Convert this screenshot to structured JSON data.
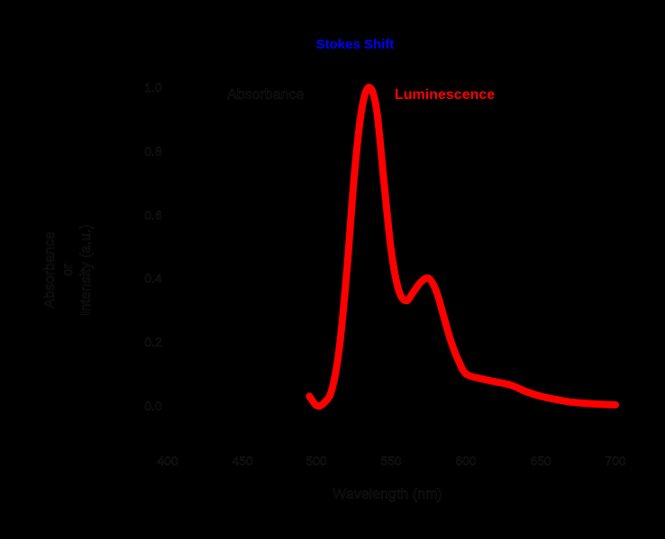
{
  "chart_data": {
    "type": "line",
    "title": "Stokes Shift",
    "xlabel": "Wavelength (nm)",
    "ylabel": [
      "Absorbance",
      "or",
      "Intensity (a.u.)"
    ],
    "xlim": [
      400,
      700
    ],
    "ylim": [
      0.0,
      1.0
    ],
    "x_ticks": [
      "400",
      "450",
      "500",
      "550",
      "600",
      "650",
      "700"
    ],
    "y_ticks": [
      "1.0",
      "0.8",
      "0.6",
      "0.4",
      "0.2",
      "0.0"
    ],
    "grid": false,
    "legend": [
      {
        "name": "Absorbance",
        "color": "#000000"
      },
      {
        "name": "Luminescence",
        "color": "#ff0000"
      }
    ],
    "series": [
      {
        "name": "Absorbance",
        "color": "#000000",
        "x": [],
        "y": []
      },
      {
        "name": "Luminescence",
        "color": "#ff0000",
        "x": [
          495,
          500,
          505,
          510,
          515,
          520,
          525,
          530,
          535,
          540,
          545,
          550,
          555,
          560,
          565,
          570,
          575,
          580,
          585,
          590,
          595,
          600,
          610,
          620,
          630,
          640,
          650,
          660,
          670,
          680,
          690,
          700
        ],
        "y": [
          0.03,
          0.0,
          0.01,
          0.05,
          0.18,
          0.42,
          0.72,
          0.93,
          1.0,
          0.93,
          0.7,
          0.48,
          0.36,
          0.33,
          0.36,
          0.39,
          0.4,
          0.36,
          0.28,
          0.2,
          0.14,
          0.1,
          0.085,
          0.075,
          0.065,
          0.045,
          0.03,
          0.02,
          0.012,
          0.008,
          0.005,
          0.003
        ]
      }
    ]
  },
  "title": "Stokes Shift",
  "labels": {
    "xlabel": "Wavelength (nm)",
    "ylabel_line1": "Absorbance",
    "ylabel_line2": "or",
    "ylabel_line3": "Intensity (a.u.)",
    "legend_absorbance": "Absorbance",
    "legend_luminescence": "Luminescence"
  },
  "ticks": {
    "x": [
      "400",
      "450",
      "500",
      "550",
      "600",
      "650",
      "700"
    ],
    "y": [
      "1.0",
      "0.8",
      "0.6",
      "0.4",
      "0.2",
      "0.0"
    ]
  },
  "colors": {
    "title": "#0000ff",
    "luminescence": "#ff0000",
    "absorbance": "#000000",
    "background": "#000000"
  }
}
